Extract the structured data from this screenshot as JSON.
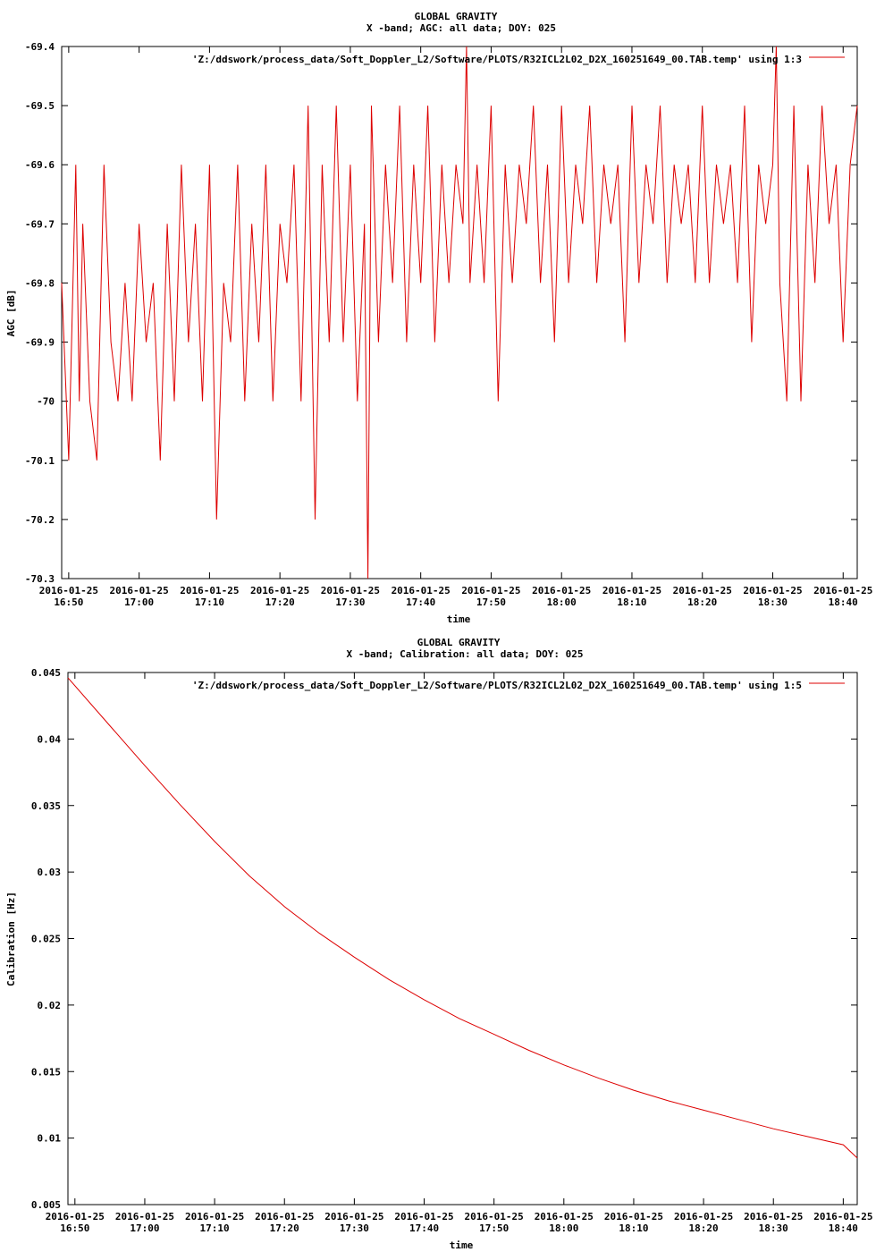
{
  "chart_data": [
    {
      "type": "line",
      "title": "GLOBAL GRAVITY",
      "subtitle": "X -band; AGC: all data; DOY: 025",
      "xlabel": "time",
      "ylabel": "AGC [dB]",
      "ylim": [
        -70.3,
        -69.4
      ],
      "xlim": [
        "16:49",
        "18:42"
      ],
      "y_ticks": [
        "-69.4",
        "-69.5",
        "-69.6",
        "-69.7",
        "-69.8",
        "-69.9",
        "-70",
        "-70.1",
        "-70.2",
        "-70.3"
      ],
      "x_tick_dates": [
        "2016-01-25",
        "2016-01-25",
        "2016-01-25",
        "2016-01-25",
        "2016-01-25",
        "2016-01-25",
        "2016-01-25",
        "2016-01-25",
        "2016-01-25",
        "2016-01-25",
        "2016-01-25",
        "2016-01-25"
      ],
      "x_tick_times": [
        "16:50",
        "17:00",
        "17:10",
        "17:20",
        "17:30",
        "17:40",
        "17:50",
        "18:00",
        "18:10",
        "18:20",
        "18:30",
        "18:40"
      ],
      "legend": "top-right",
      "series": [
        {
          "name": "'Z:/ddswork/process_data/Soft_Doppler_L2/Software/PLOTS/R32ICL2L02_D2X_160251649_00.TAB.temp' using 1:3",
          "color": "#dd0000",
          "x": [
            "16:49:00",
            "16:50:00",
            "16:51:00",
            "16:51:30",
            "16:52:00",
            "16:53:00",
            "16:54:00",
            "16:55:00",
            "16:56:00",
            "16:57:00",
            "16:58:00",
            "16:59:00",
            "17:00:00",
            "17:01:00",
            "17:02:00",
            "17:03:00",
            "17:04:00",
            "17:05:00",
            "17:06:00",
            "17:07:00",
            "17:08:00",
            "17:09:00",
            "17:10:00",
            "17:11:00",
            "17:12:00",
            "17:13:00",
            "17:14:00",
            "17:15:00",
            "17:16:00",
            "17:17:00",
            "17:18:00",
            "17:19:00",
            "17:20:00",
            "17:21:00",
            "17:22:00",
            "17:23:00",
            "17:24:00",
            "17:25:00",
            "17:26:00",
            "17:27:00",
            "17:28:00",
            "17:29:00",
            "17:30:00",
            "17:31:00",
            "17:32:00",
            "17:32:30",
            "17:33:00",
            "17:34:00",
            "17:35:00",
            "17:36:00",
            "17:37:00",
            "17:38:00",
            "17:39:00",
            "17:40:00",
            "17:41:00",
            "17:42:00",
            "17:43:00",
            "17:44:00",
            "17:45:00",
            "17:46:00",
            "17:46:30",
            "17:47:00",
            "17:48:00",
            "17:49:00",
            "17:50:00",
            "17:51:00",
            "17:52:00",
            "17:53:00",
            "17:54:00",
            "17:55:00",
            "17:56:00",
            "17:57:00",
            "17:58:00",
            "17:59:00",
            "18:00:00",
            "18:01:00",
            "18:02:00",
            "18:03:00",
            "18:04:00",
            "18:05:00",
            "18:06:00",
            "18:07:00",
            "18:08:00",
            "18:09:00",
            "18:10:00",
            "18:11:00",
            "18:12:00",
            "18:13:00",
            "18:14:00",
            "18:15:00",
            "18:16:00",
            "18:17:00",
            "18:18:00",
            "18:19:00",
            "18:20:00",
            "18:21:00",
            "18:22:00",
            "18:23:00",
            "18:24:00",
            "18:25:00",
            "18:26:00",
            "18:27:00",
            "18:28:00",
            "18:29:00",
            "18:30:00",
            "18:30:30",
            "18:31:00",
            "18:32:00",
            "18:33:00",
            "18:34:00",
            "18:35:00",
            "18:36:00",
            "18:37:00",
            "18:38:00",
            "18:39:00",
            "18:40:00",
            "18:41:00",
            "18:42:00"
          ],
          "values": [
            -69.8,
            -70.1,
            -69.6,
            -70.0,
            -69.7,
            -70.0,
            -70.1,
            -69.6,
            -69.9,
            -70.0,
            -69.8,
            -70.0,
            -69.7,
            -69.9,
            -69.8,
            -70.1,
            -69.7,
            -70.0,
            -69.6,
            -69.9,
            -69.7,
            -70.0,
            -69.6,
            -70.2,
            -69.8,
            -69.9,
            -69.6,
            -70.0,
            -69.7,
            -69.9,
            -69.6,
            -70.0,
            -69.7,
            -69.8,
            -69.6,
            -70.0,
            -69.5,
            -70.2,
            -69.6,
            -69.9,
            -69.5,
            -69.9,
            -69.6,
            -70.0,
            -69.7,
            -70.3,
            -69.5,
            -69.9,
            -69.6,
            -69.8,
            -69.5,
            -69.9,
            -69.6,
            -69.8,
            -69.5,
            -69.9,
            -69.6,
            -69.8,
            -69.6,
            -69.7,
            -69.4,
            -69.8,
            -69.6,
            -69.8,
            -69.5,
            -70.0,
            -69.6,
            -69.8,
            -69.6,
            -69.7,
            -69.5,
            -69.8,
            -69.6,
            -69.9,
            -69.5,
            -69.8,
            -69.6,
            -69.7,
            -69.5,
            -69.8,
            -69.6,
            -69.7,
            -69.6,
            -69.9,
            -69.5,
            -69.8,
            -69.6,
            -69.7,
            -69.5,
            -69.8,
            -69.6,
            -69.7,
            -69.6,
            -69.8,
            -69.5,
            -69.8,
            -69.6,
            -69.7,
            -69.6,
            -69.8,
            -69.5,
            -69.9,
            -69.6,
            -69.7,
            -69.6,
            -69.4,
            -69.8,
            -70.0,
            -69.5,
            -70.0,
            -69.6,
            -69.8,
            -69.5,
            -69.7,
            -69.6,
            -69.9,
            -69.6,
            -69.5
          ]
        }
      ]
    },
    {
      "type": "line",
      "title": "GLOBAL GRAVITY",
      "subtitle": "X -band; Calibration: all data; DOY: 025",
      "xlabel": "time",
      "ylabel": "Calibration [Hz]",
      "ylim": [
        0.005,
        0.045
      ],
      "xlim": [
        "16:49",
        "18:42"
      ],
      "y_ticks": [
        "0.045",
        "0.04",
        "0.035",
        "0.03",
        "0.025",
        "0.02",
        "0.015",
        "0.01",
        "0.005"
      ],
      "x_tick_dates": [
        "2016-01-25",
        "2016-01-25",
        "2016-01-25",
        "2016-01-25",
        "2016-01-25",
        "2016-01-25",
        "2016-01-25",
        "2016-01-25",
        "2016-01-25",
        "2016-01-25",
        "2016-01-25",
        "2016-01-25"
      ],
      "x_tick_times": [
        "16:50",
        "17:00",
        "17:10",
        "17:20",
        "17:30",
        "17:40",
        "17:50",
        "18:00",
        "18:10",
        "18:20",
        "18:30",
        "18:40"
      ],
      "legend": "top-right",
      "series": [
        {
          "name": "'Z:/ddswork/process_data/Soft_Doppler_L2/Software/PLOTS/R32ICL2L02_D2X_160251649_00.TAB.temp' using 1:5",
          "color": "#dd0000",
          "x": [
            "16:49",
            "16:55",
            "17:00",
            "17:05",
            "17:10",
            "17:15",
            "17:20",
            "17:25",
            "17:30",
            "17:35",
            "17:40",
            "17:45",
            "17:50",
            "17:55",
            "18:00",
            "18:05",
            "18:10",
            "18:15",
            "18:20",
            "18:25",
            "18:30",
            "18:35",
            "18:40",
            "18:42"
          ],
          "values": [
            0.0446,
            0.041,
            0.038,
            0.0351,
            0.0323,
            0.0297,
            0.0274,
            0.0254,
            0.0236,
            0.0219,
            0.0204,
            0.019,
            0.0178,
            0.0166,
            0.0155,
            0.0145,
            0.0136,
            0.0128,
            0.0121,
            0.0114,
            0.0107,
            0.0101,
            0.0095,
            0.0085
          ]
        }
      ]
    }
  ]
}
